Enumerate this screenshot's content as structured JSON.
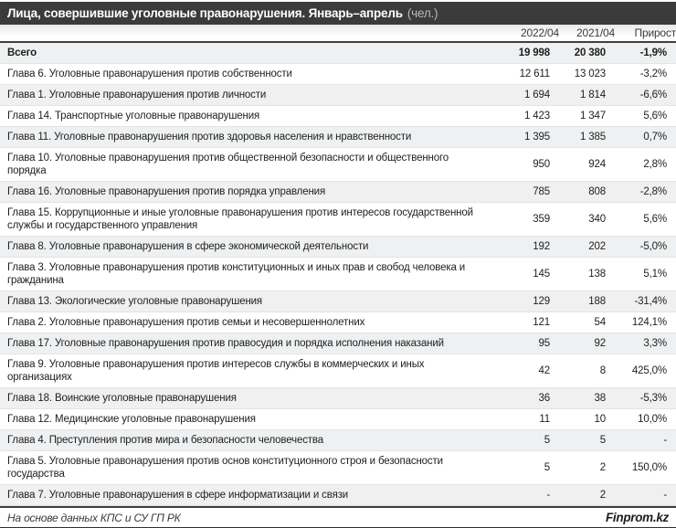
{
  "title": {
    "text": "Лица, совершившие уголовные правонарушения. Январь–апрель",
    "unit": "(чел.)"
  },
  "colors": {
    "title_bar_bg": "#3b3b3b",
    "title_text": "#ffffff",
    "unit_text": "#b9b9b9",
    "stripe_row_bg": "#eff0f1",
    "separator_dark": "#3f3f3f",
    "bottom_bar": "#303030"
  },
  "footer": {
    "source": "На основе данных КПС и СУ ГП РК",
    "brand": "Finprom.kz"
  },
  "chart_data": {
    "type": "table",
    "title": "Лица, совершившие уголовные правонарушения. Январь–апрель (чел.)",
    "columns": [
      "2022/04",
      "2021/04",
      "Прирост"
    ],
    "rows": [
      {
        "name": "Всего",
        "v2022": "19 998",
        "v2021": "20 380",
        "growth": "-1,9%",
        "bold": true
      },
      {
        "name": "Глава 6. Уголовные правонарушения против собственности",
        "v2022": "12 611",
        "v2021": "13 023",
        "growth": "-3,2%",
        "bold": false
      },
      {
        "name": "Глава 1. Уголовные правонарушения против личности",
        "v2022": "1 694",
        "v2021": "1 814",
        "growth": "-6,6%",
        "bold": false
      },
      {
        "name": "Глава 14. Транспортные уголовные правонарушения",
        "v2022": "1 423",
        "v2021": "1 347",
        "growth": "5,6%",
        "bold": false
      },
      {
        "name": "Глава 11. Уголовные правонарушения против здоровья населения и нравственности",
        "v2022": "1 395",
        "v2021": "1 385",
        "growth": "0,7%",
        "bold": false
      },
      {
        "name": "Глава 10. Уголовные правонарушения против общественной безопасности и общественного порядка",
        "v2022": "950",
        "v2021": "924",
        "growth": "2,8%",
        "bold": false
      },
      {
        "name": "Глава 16. Уголовные правонарушения против порядка управления",
        "v2022": "785",
        "v2021": "808",
        "growth": "-2,8%",
        "bold": false
      },
      {
        "name": "Глава 15. Коррупционные и иные уголовные правонарушения против интересов государственной службы и государственного управления",
        "v2022": "359",
        "v2021": "340",
        "growth": "5,6%",
        "bold": false
      },
      {
        "name": "Глава 8. Уголовные правонарушения в сфере экономической деятельности",
        "v2022": "192",
        "v2021": "202",
        "growth": "-5,0%",
        "bold": false
      },
      {
        "name": "Глава 3. Уголовные правонарушения против конституционных и иных прав и свобод человека и гражданина",
        "v2022": "145",
        "v2021": "138",
        "growth": "5,1%",
        "bold": false
      },
      {
        "name": "Глава 13. Экологические уголовные правонарушения",
        "v2022": "129",
        "v2021": "188",
        "growth": "-31,4%",
        "bold": false
      },
      {
        "name": "Глава 2. Уголовные правонарушения против семьи и несовершеннолетних",
        "v2022": "121",
        "v2021": "54",
        "growth": "124,1%",
        "bold": false
      },
      {
        "name": "Глава 17. Уголовные правонарушения против правосудия и порядка исполнения наказаний",
        "v2022": "95",
        "v2021": "92",
        "growth": "3,3%",
        "bold": false
      },
      {
        "name": "Глава 9. Уголовные правонарушения против интересов службы в коммерческих и иных организациях",
        "v2022": "42",
        "v2021": "8",
        "growth": "425,0%",
        "bold": false
      },
      {
        "name": "Глава 18. Воинские уголовные правонарушения",
        "v2022": "36",
        "v2021": "38",
        "growth": "-5,3%",
        "bold": false
      },
      {
        "name": "Глава 12. Медицинские уголовные правонарушения",
        "v2022": "11",
        "v2021": "10",
        "growth": "10,0%",
        "bold": false
      },
      {
        "name": "Глава 4. Преступления против мира и безопасности человечества",
        "v2022": "5",
        "v2021": "5",
        "growth": "-",
        "bold": false
      },
      {
        "name": "Глава 5. Уголовные правонарушения против основ конституционного строя и безопасности государства",
        "v2022": "5",
        "v2021": "2",
        "growth": "150,0%",
        "bold": false
      },
      {
        "name": "Глава 7. Уголовные правонарушения в сфере информатизации и связи",
        "v2022": "-",
        "v2021": "2",
        "growth": "-",
        "bold": false
      }
    ]
  }
}
